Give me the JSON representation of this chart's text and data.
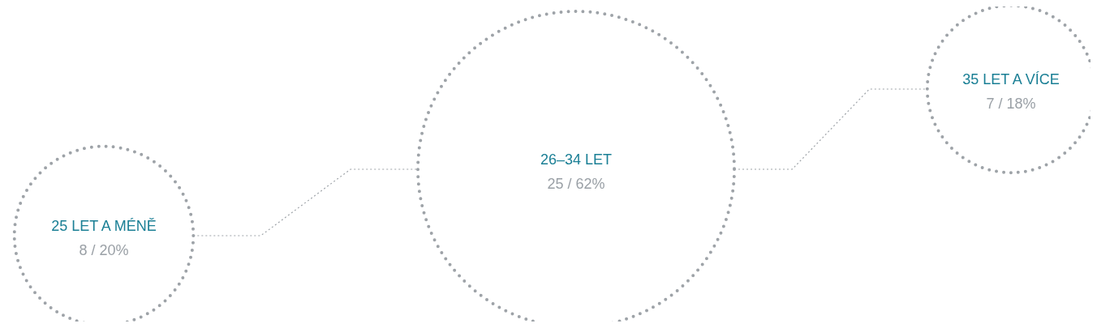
{
  "chart_data": {
    "type": "other",
    "categories": [
      "25 LET A MÉNĚ",
      "26–34 LET",
      "35 LET A VÍCE"
    ],
    "values": [
      8,
      25,
      7
    ],
    "value_labels": [
      "8 / 20%",
      "25 / 62%",
      "7 / 18%"
    ],
    "color": "#9ea3a8"
  }
}
